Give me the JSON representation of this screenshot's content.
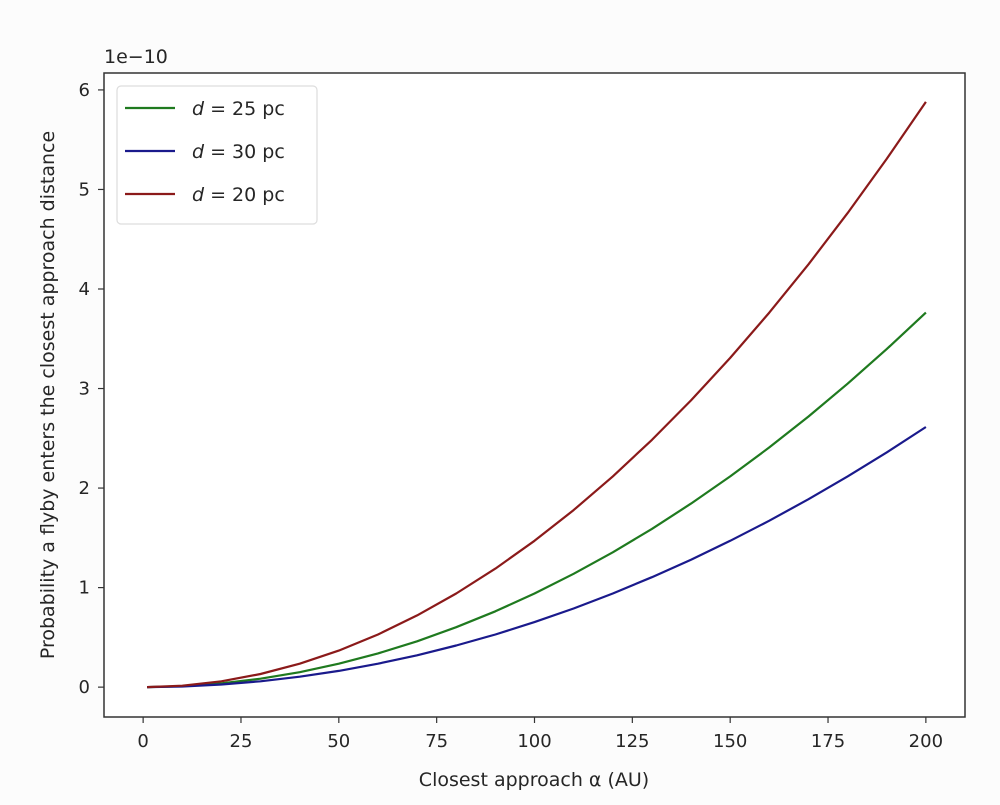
{
  "chart_data": {
    "type": "line",
    "title": "",
    "xlabel": "Closest approach α (AU)",
    "ylabel": "Probability a flyby enters the closest approach distance",
    "y_offset_label": "1e−10",
    "xlim": [
      -10,
      210
    ],
    "ylim": [
      -0.3,
      6.17
    ],
    "xticks": [
      0,
      25,
      50,
      75,
      100,
      125,
      150,
      175,
      200
    ],
    "yticks": [
      0,
      1,
      2,
      3,
      4,
      5,
      6
    ],
    "grid": false,
    "legend_position": "top-left",
    "x": [
      1,
      10,
      20,
      30,
      40,
      50,
      60,
      70,
      80,
      90,
      100,
      110,
      120,
      130,
      140,
      150,
      160,
      170,
      180,
      190,
      200
    ],
    "series": [
      {
        "name": "d = 25 pc",
        "color": "#1f7a1f",
        "values": [
          0.0001,
          0.0094,
          0.0376,
          0.0847,
          0.1505,
          0.2352,
          0.3387,
          0.461,
          0.6021,
          0.762,
          0.9408,
          1.1384,
          1.3548,
          1.59,
          1.844,
          2.1168,
          2.4084,
          2.7189,
          3.0482,
          3.3963,
          3.7632
        ]
      },
      {
        "name": "d = 30 pc",
        "color": "#1a1a8c",
        "values": [
          0.0001,
          0.0065,
          0.0261,
          0.0588,
          0.1045,
          0.1633,
          0.2352,
          0.3201,
          0.4181,
          0.5292,
          0.6533,
          0.7905,
          0.9408,
          1.1041,
          1.2805,
          1.47,
          1.6725,
          1.8881,
          2.1168,
          2.3585,
          2.6133
        ]
      },
      {
        "name": "d = 20 pc",
        "color": "#8b1a1a",
        "values": [
          0.0001,
          0.0147,
          0.0588,
          0.1323,
          0.2352,
          0.3675,
          0.5292,
          0.7203,
          0.9408,
          1.1907,
          1.47,
          1.7787,
          2.1168,
          2.4843,
          2.8812,
          3.3075,
          3.7632,
          4.2483,
          4.7628,
          5.3067,
          5.88
        ]
      }
    ]
  }
}
